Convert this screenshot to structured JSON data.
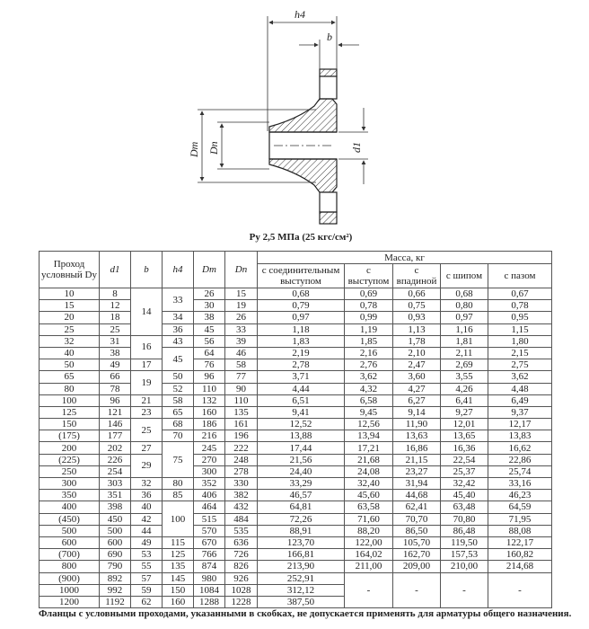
{
  "drawing": {
    "labels": {
      "h4": "h4",
      "b": "b",
      "Dm": "Dm",
      "Dn": "Dn",
      "d1": "d1"
    },
    "caption": "Pу 2,5 МПа (25 кгс/см²)"
  },
  "table": {
    "headers": {
      "dy": "Проход условный Dу",
      "d1": "d1",
      "b": "b",
      "h4": "h4",
      "Dm": "Dm",
      "Dn": "Dn",
      "mass_group": "Масса, кг",
      "mass": [
        "с соединительным выступом",
        "с выступом",
        "с впадиной",
        "с шипом",
        "с пазом"
      ]
    },
    "rows": [
      {
        "dy": "10",
        "d1": "8",
        "b": "14",
        "h4": "33",
        "Dm": "26",
        "Dn": "15",
        "mass": [
          "0,68",
          "0,69",
          "0,66",
          "0,68",
          "0,67"
        ]
      },
      {
        "dy": "15",
        "d1": "12",
        "b": null,
        "h4": null,
        "Dm": "30",
        "Dn": "19",
        "mass": [
          "0,79",
          "0,78",
          "0,75",
          "0,80",
          "0,78"
        ]
      },
      {
        "dy": "20",
        "d1": "18",
        "b": null,
        "h4": "34",
        "Dm": "38",
        "Dn": "26",
        "mass": [
          "0,97",
          "0,99",
          "0,93",
          "0,97",
          "0,95"
        ]
      },
      {
        "dy": "25",
        "d1": "25",
        "b": null,
        "h4": "36",
        "Dm": "45",
        "Dn": "33",
        "mass": [
          "1,18",
          "1,19",
          "1,13",
          "1,16",
          "1,15"
        ]
      },
      {
        "dy": "32",
        "d1": "31",
        "b": "16",
        "h4": "43",
        "Dm": "56",
        "Dn": "39",
        "mass": [
          "1,83",
          "1,85",
          "1,78",
          "1,81",
          "1,80"
        ]
      },
      {
        "dy": "40",
        "d1": "38",
        "b": null,
        "h4": "45",
        "Dm": "64",
        "Dn": "46",
        "mass": [
          "2,19",
          "2,16",
          "2,10",
          "2,11",
          "2,15"
        ]
      },
      {
        "dy": "50",
        "d1": "49",
        "b": "17",
        "h4": null,
        "Dm": "76",
        "Dn": "58",
        "mass": [
          "2,78",
          "2,76",
          "2,47",
          "2,69",
          "2,75"
        ]
      },
      {
        "dy": "65",
        "d1": "66",
        "b": "19",
        "h4": "50",
        "Dm": "96",
        "Dn": "77",
        "mass": [
          "3,71",
          "3,62",
          "3,60",
          "3,55",
          "3,62"
        ]
      },
      {
        "dy": "80",
        "d1": "78",
        "b": null,
        "h4": "52",
        "Dm": "110",
        "Dn": "90",
        "mass": [
          "4,44",
          "4,32",
          "4,27",
          "4,26",
          "4,48"
        ]
      },
      {
        "dy": "100",
        "d1": "96",
        "b": "21",
        "h4": "58",
        "Dm": "132",
        "Dn": "110",
        "mass": [
          "6,51",
          "6,58",
          "6,27",
          "6,41",
          "6,49"
        ]
      },
      {
        "dy": "125",
        "d1": "121",
        "b": "23",
        "h4": "65",
        "Dm": "160",
        "Dn": "135",
        "mass": [
          "9,41",
          "9,45",
          "9,14",
          "9,27",
          "9,37"
        ]
      },
      {
        "dy": "150",
        "d1": "146",
        "b": "25",
        "h4": "68",
        "Dm": "186",
        "Dn": "161",
        "mass": [
          "12,52",
          "12,56",
          "11,90",
          "12,01",
          "12,17"
        ]
      },
      {
        "dy": "(175)",
        "d1": "177",
        "b": null,
        "h4": "70",
        "Dm": "216",
        "Dn": "196",
        "mass": [
          "13,88",
          "13,94",
          "13,63",
          "13,65",
          "13,83"
        ]
      },
      {
        "dy": "200",
        "d1": "202",
        "b": "27",
        "h4": "75",
        "Dm": "245",
        "Dn": "222",
        "mass": [
          "17,44",
          "17,21",
          "16,86",
          "16,36",
          "16,62"
        ]
      },
      {
        "dy": "(225)",
        "d1": "226",
        "b": "29",
        "h4": null,
        "Dm": "270",
        "Dn": "248",
        "mass": [
          "21,56",
          "21,68",
          "21,15",
          "22,54",
          "22,86"
        ]
      },
      {
        "dy": "250",
        "d1": "254",
        "b": null,
        "h4": null,
        "Dm": "300",
        "Dn": "278",
        "mass": [
          "24,40",
          "24,08",
          "23,27",
          "25,37",
          "25,74"
        ]
      },
      {
        "dy": "300",
        "d1": "303",
        "b": "32",
        "h4": "80",
        "Dm": "352",
        "Dn": "330",
        "mass": [
          "33,29",
          "32,40",
          "31,94",
          "32,42",
          "33,16"
        ]
      },
      {
        "dy": "350",
        "d1": "351",
        "b": "36",
        "h4": "85",
        "Dm": "406",
        "Dn": "382",
        "mass": [
          "46,57",
          "45,60",
          "44,68",
          "45,40",
          "46,23"
        ]
      },
      {
        "dy": "400",
        "d1": "398",
        "b": "40",
        "h4": "100",
        "Dm": "464",
        "Dn": "432",
        "mass": [
          "64,81",
          "63,58",
          "62,41",
          "63,48",
          "64,59"
        ]
      },
      {
        "dy": "(450)",
        "d1": "450",
        "b": "42",
        "h4": null,
        "Dm": "515",
        "Dn": "484",
        "mass": [
          "72,26",
          "71,60",
          "70,70",
          "70,80",
          "71,95"
        ]
      },
      {
        "dy": "500",
        "d1": "500",
        "b": "44",
        "h4": null,
        "Dm": "570",
        "Dn": "535",
        "mass": [
          "88,91",
          "88,20",
          "86,50",
          "86,48",
          "88,08"
        ]
      },
      {
        "dy": "600",
        "d1": "600",
        "b": "49",
        "h4": "115",
        "Dm": "670",
        "Dn": "636",
        "mass": [
          "123,70",
          "122,00",
          "105,70",
          "119,50",
          "122,17"
        ]
      },
      {
        "dy": "(700)",
        "d1": "690",
        "b": "53",
        "h4": "125",
        "Dm": "766",
        "Dn": "726",
        "mass": [
          "166,81",
          "164,02",
          "162,70",
          "157,53",
          "160,82"
        ]
      },
      {
        "dy": "800",
        "d1": "790",
        "b": "55",
        "h4": "135",
        "Dm": "874",
        "Dn": "826",
        "mass": [
          "213,90",
          "211,00",
          "209,00",
          "210,00",
          "214,68"
        ]
      },
      {
        "dy": "(900)",
        "d1": "892",
        "b": "57",
        "h4": "145",
        "Dm": "980",
        "Dn": "926",
        "mass": [
          "252,91",
          "-",
          "-",
          "-",
          "-"
        ]
      },
      {
        "dy": "1000",
        "d1": "992",
        "b": "59",
        "h4": "150",
        "Dm": "1084",
        "Dn": "1028",
        "mass": [
          "312,12",
          null,
          null,
          null,
          null
        ]
      },
      {
        "dy": "1200",
        "d1": "1192",
        "b": "62",
        "h4": "160",
        "Dm": "1288",
        "Dn": "1228",
        "mass": [
          "387,50",
          null,
          null,
          null,
          null
        ]
      }
    ]
  },
  "footnote": "Фланцы с условными проходами, указанными в скобках, не допускается применять для арматуры общего назначения."
}
